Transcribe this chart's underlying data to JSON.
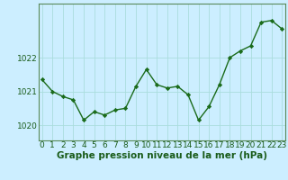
{
  "x": [
    0,
    1,
    2,
    3,
    4,
    5,
    6,
    7,
    8,
    9,
    10,
    11,
    12,
    13,
    14,
    15,
    16,
    17,
    18,
    19,
    20,
    21,
    22,
    23
  ],
  "y": [
    1021.35,
    1021.0,
    1020.85,
    1020.75,
    1020.15,
    1020.4,
    1020.3,
    1020.45,
    1020.5,
    1021.15,
    1021.65,
    1021.2,
    1021.1,
    1021.15,
    1020.9,
    1020.15,
    1020.55,
    1021.2,
    1022.0,
    1022.2,
    1022.35,
    1023.05,
    1023.1,
    1022.85
  ],
  "line_color": "#1a6b1a",
  "marker": "D",
  "marker_size": 2.2,
  "line_width": 1.0,
  "bg_color": "#cceeff",
  "grid_color": "#aadddd",
  "xlabel": "Graphe pression niveau de la mer (hPa)",
  "xlabel_fontsize": 7.5,
  "xlabel_color": "#1a5c1a",
  "yticks": [
    1020,
    1021,
    1022
  ],
  "ylim": [
    1019.55,
    1023.6
  ],
  "xlim": [
    -0.3,
    23.3
  ],
  "tick_color": "#1a5c1a",
  "tick_fontsize": 6.5,
  "spine_color": "#5a8a5a"
}
